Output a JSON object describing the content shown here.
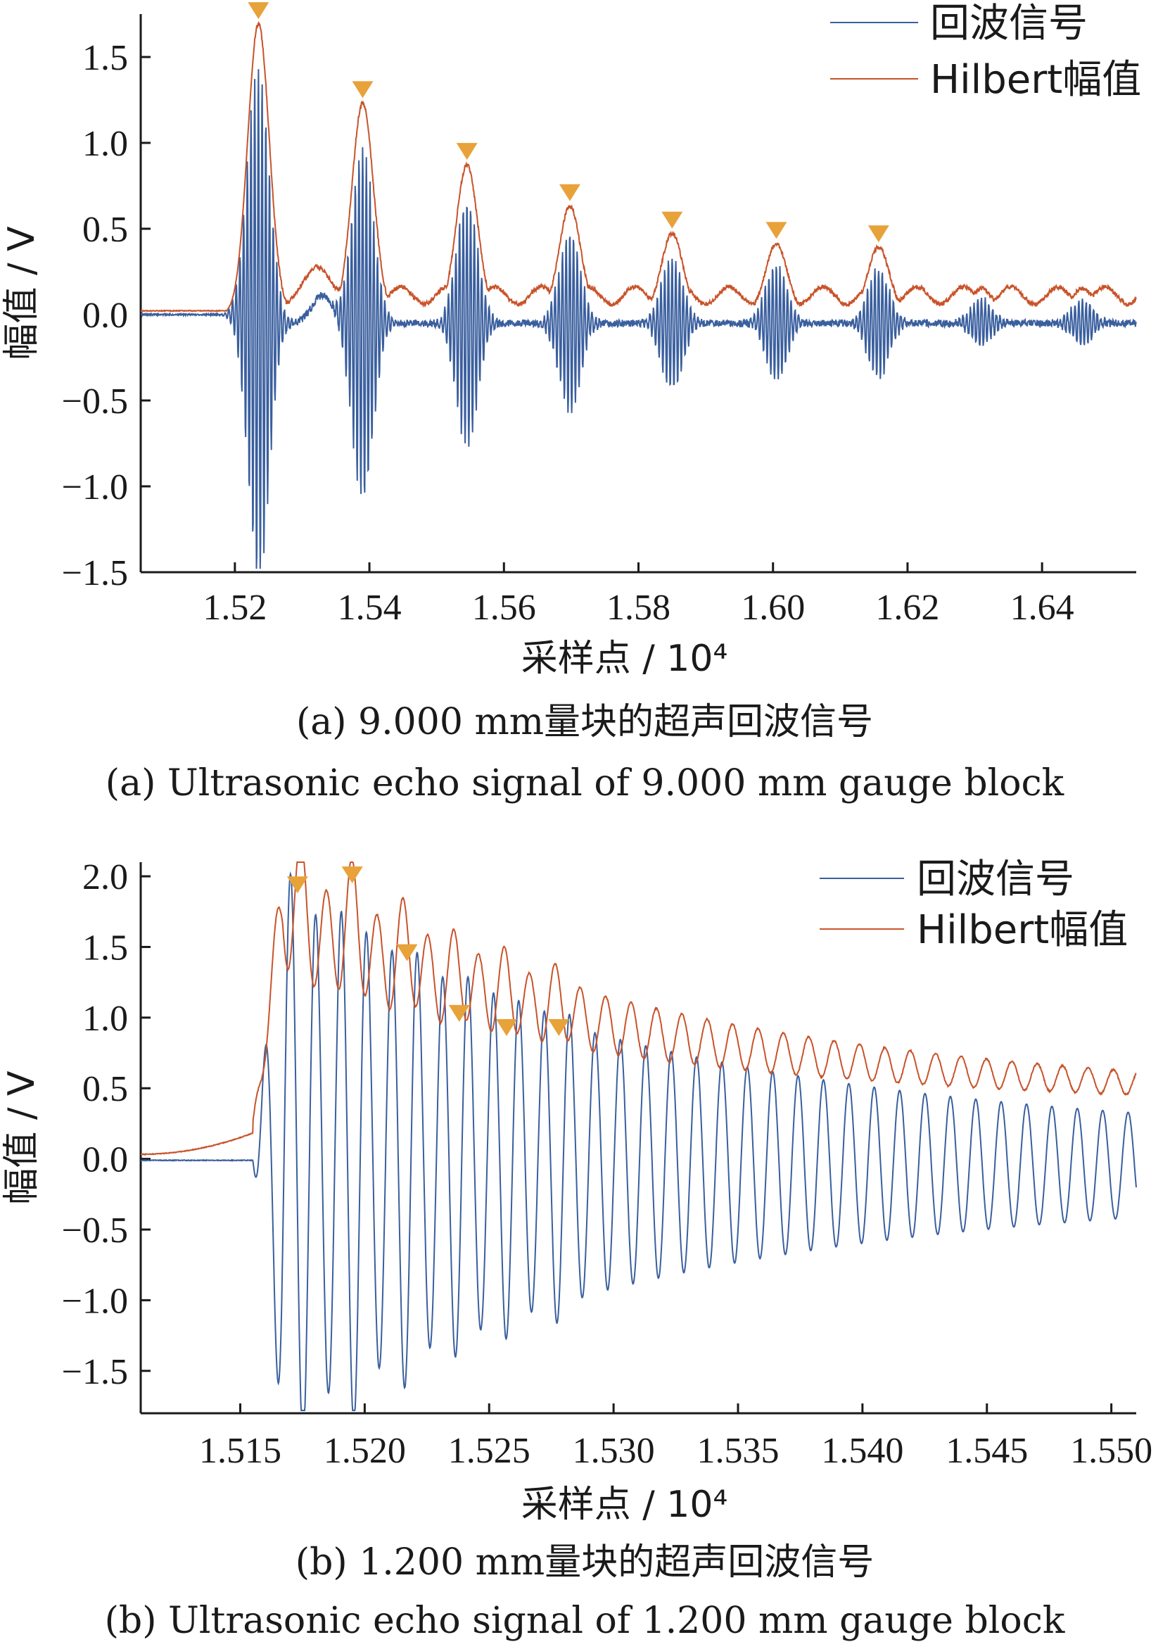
{
  "chart_data": [
    {
      "type": "line",
      "xlabel": "采样点 / 10⁴",
      "ylabel": "幅值 / V",
      "xlim": [
        1.506,
        1.654
      ],
      "ylim": [
        -1.5,
        1.75
      ],
      "xticks": [
        "1.52",
        "1.54",
        "1.56",
        "1.58",
        "1.60",
        "1.62",
        "1.64"
      ],
      "yticks": [
        "1.5",
        "1.0",
        "0.5",
        "0.0",
        "−0.5",
        "−1.0",
        "−1.5"
      ],
      "legend_position": "top-right",
      "caption_cn": "(a) 9.000 mm量块的超声回波信号",
      "caption_en": "(a) Ultrasonic echo signal of 9.000 mm gauge block",
      "series": [
        {
          "name": "回波信号",
          "color": "#3a5f9e"
        },
        {
          "name": "Hilbert幅值",
          "color": "#c8532a"
        }
      ],
      "echo_peaks": {
        "x": [
          1.5235,
          1.539,
          1.5545,
          1.5698,
          1.585,
          1.6005,
          1.6157
        ],
        "y": [
          1.68,
          1.22,
          0.86,
          0.62,
          0.46,
          0.4,
          0.38
        ]
      },
      "peak_marker_color": "#e8a23a",
      "baseline": 0.02,
      "tail_level": 0.1,
      "envelope_width": 0.0016,
      "carrier_period": 0.00055,
      "noise": 0.03
    },
    {
      "type": "line",
      "xlabel": "采样点 / 10⁴",
      "ylabel": "幅值 / V",
      "xlim": [
        1.511,
        1.551
      ],
      "ylim": [
        -1.8,
        2.1
      ],
      "xticks": [
        "1.515",
        "1.520",
        "1.525",
        "1.530",
        "1.535",
        "1.540",
        "1.545",
        "1.550"
      ],
      "yticks": [
        "2.0",
        "1.5",
        "1.0",
        "0.5",
        "0.0",
        "−0.5",
        "−1.0",
        "−1.5"
      ],
      "legend_position": "top-right",
      "caption_cn": "(b) 1.200 mm量块的超声回波信号",
      "caption_en": "(b) Ultrasonic echo signal of 1.200 mm gauge block",
      "series": [
        {
          "name": "回波信号",
          "color": "#3a5f9e"
        },
        {
          "name": "Hilbert幅值",
          "color": "#c8532a"
        }
      ],
      "echo_peaks": {
        "x": [
          1.5173,
          1.5195,
          1.5217,
          1.5238,
          1.5257,
          1.5278
        ],
        "y": [
          1.83,
          1.9,
          1.35,
          0.92,
          0.82,
          0.82
        ]
      },
      "peak_marker_color": "#e8a23a",
      "onset": 1.5155,
      "carrier_period": 0.00102,
      "noise": 0.01
    }
  ]
}
